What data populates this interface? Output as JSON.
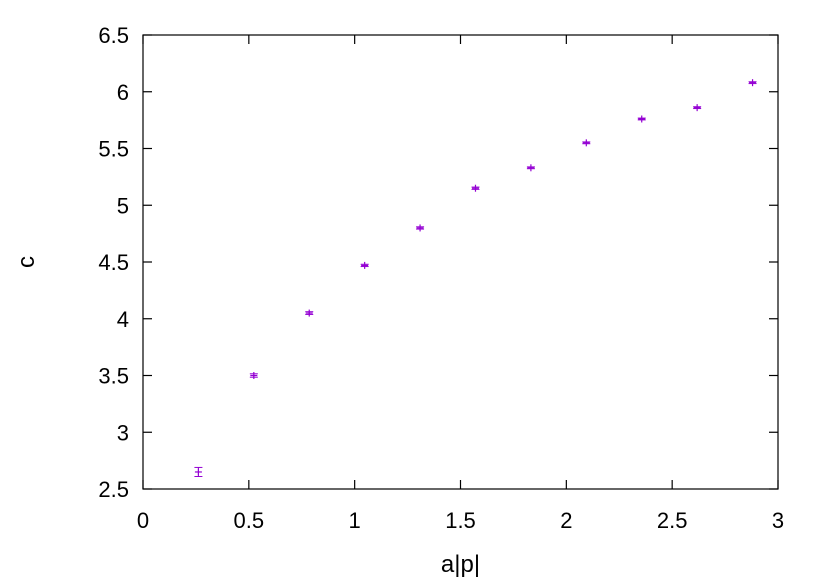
{
  "chart_data": {
    "type": "scatter",
    "title": "",
    "xlabel": "a|p|",
    "ylabel": "c",
    "xlim": [
      0,
      3
    ],
    "ylim": [
      2.5,
      6.5
    ],
    "x_ticks": [
      "0",
      "0.5",
      "1",
      "1.5",
      "2",
      "2.5",
      "3"
    ],
    "y_ticks": [
      "2.5",
      "3",
      "3.5",
      "4",
      "4.5",
      "5",
      "5.5",
      "6",
      "6.5"
    ],
    "grid": false,
    "legend": "none",
    "series": [
      {
        "color": "#9400d3",
        "marker": "plus",
        "x": [
          0.2618,
          0.5236,
          0.7854,
          1.0472,
          1.309,
          1.5708,
          1.8326,
          2.0944,
          2.3562,
          2.618,
          2.8798
        ],
        "y": [
          2.65,
          3.5,
          4.05,
          4.47,
          4.8,
          5.15,
          5.33,
          5.55,
          5.76,
          5.86,
          6.08
        ],
        "err": [
          0.04,
          0.015,
          0.012,
          0.01,
          0.01,
          0.01,
          0.008,
          0.008,
          0.008,
          0.008,
          0.008
        ]
      }
    ]
  }
}
